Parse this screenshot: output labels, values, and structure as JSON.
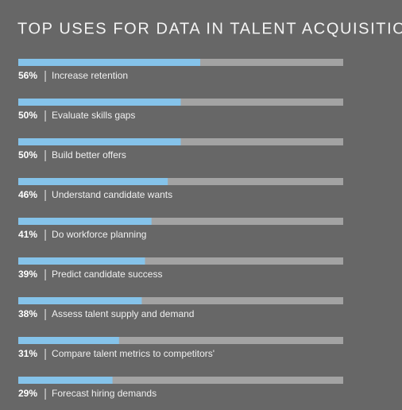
{
  "chart_data": {
    "type": "bar",
    "orientation": "horizontal",
    "title": "TOP USES FOR DATA IN TALENT ACQUISITION",
    "categories": [
      "Increase retention",
      "Evaluate skills gaps",
      "Build better offers",
      "Understand candidate wants",
      "Do workforce planning",
      "Predict candidate success",
      "Assess talent supply and demand",
      "Compare talent metrics to competitors'",
      "Forecast hiring demands"
    ],
    "values": [
      56,
      50,
      50,
      46,
      41,
      39,
      38,
      31,
      29
    ],
    "value_labels": [
      "56%",
      "50%",
      "50%",
      "46%",
      "41%",
      "39%",
      "38%",
      "31%",
      "29%"
    ],
    "color": "#85c3ea",
    "track_color": "#a3a3a3",
    "xlim": [
      0,
      100
    ]
  }
}
